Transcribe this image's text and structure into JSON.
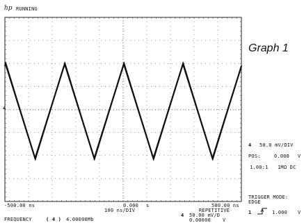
{
  "header": {
    "brand": "hp",
    "status": "RUNNING"
  },
  "graph_label": "Graph 1",
  "channel": {
    "number": "4",
    "scale": "50.0 mV/DIV",
    "pos_label": "POS:",
    "pos_value": "0.000",
    "pos_unit": "V",
    "probe": "1.00:1",
    "coupling": "1MΩ DC",
    "marker": "4"
  },
  "trigger": {
    "mode_label": "TRIGGER MODE:",
    "mode_value": "EDGE",
    "source": "1",
    "level": "1.000",
    "level_unit": "V"
  },
  "timebase": {
    "left": "-500.00 ns",
    "center_value": "0.000",
    "center_unit": "s",
    "right": "500.00 ns",
    "per_div": "100  ns/DIV",
    "acq_mode": "REPETITIVE"
  },
  "footer": {
    "meas_label": "FREQUENCY",
    "meas_channel": "( 4 )",
    "meas_value": "4.00000Mb",
    "ch": "4",
    "ch_scale": "50.00 mV/D",
    "ch_offset": "0.00000",
    "ch_unit": "V"
  },
  "waveform": {
    "shape": "triangle",
    "frequency_mhz": 4.0,
    "cycles_on_screen": 4
  }
}
